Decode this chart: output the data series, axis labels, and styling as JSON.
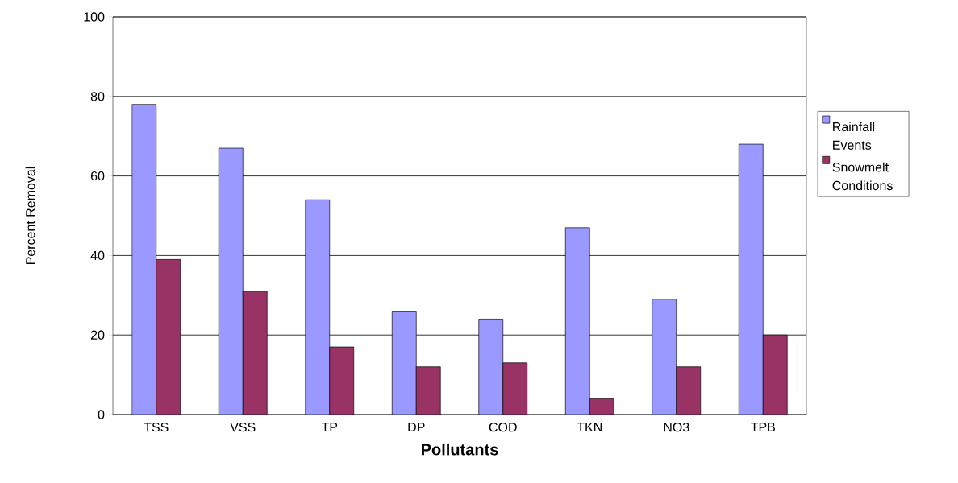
{
  "chart_data": {
    "type": "bar",
    "xlabel": "Pollutants",
    "ylabel": "Percent Removal",
    "categories": [
      "TSS",
      "VSS",
      "TP",
      "DP",
      "COD",
      "TKN",
      "NO3",
      "TPB"
    ],
    "series": [
      {
        "name": "Rainfall Events",
        "color": "#9999ff",
        "values": [
          78,
          67,
          54,
          26,
          24,
          47,
          29,
          68
        ]
      },
      {
        "name": "Snowmelt Conditions",
        "color": "#993366",
        "values": [
          39,
          31,
          17,
          12,
          13,
          4,
          12,
          20
        ]
      }
    ],
    "ylim": [
      0,
      100
    ],
    "yticks": [
      0,
      20,
      40,
      60,
      80,
      100
    ],
    "grid": "y",
    "legend": "right"
  }
}
